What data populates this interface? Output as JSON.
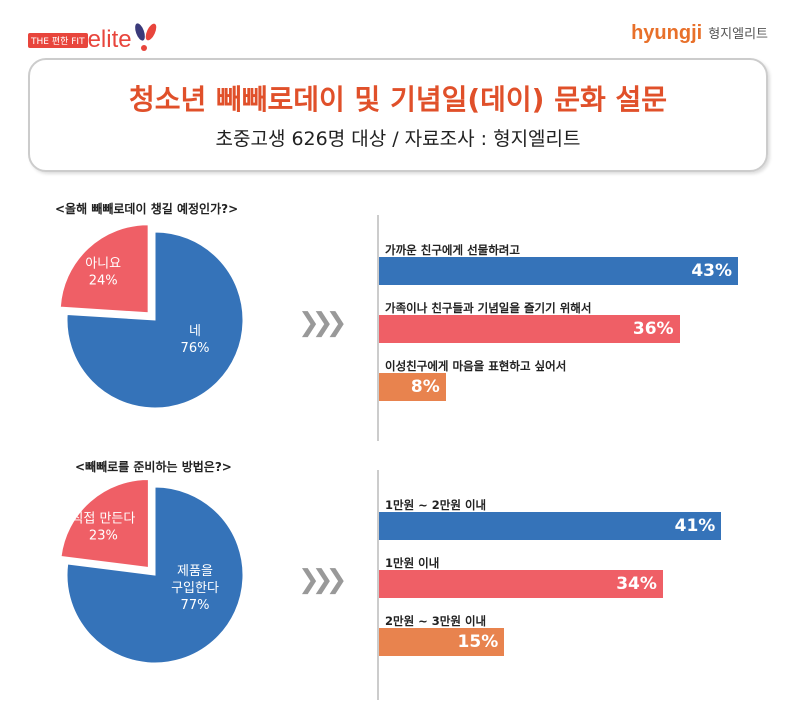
{
  "header": {
    "left_logo_tag": "THE 편한 FIT",
    "left_logo_name": "elite",
    "right_logo_en": "hyungji",
    "right_logo_ko": "형지엘리트"
  },
  "title": "청소년 빼빼로데이 및 기념일(데이) 문화 설문",
  "subtitle": "초중고생 626명 대상 / 자료조사 : 형지엘리트",
  "colors": {
    "blue": "#3573b9",
    "red": "#ef5f66",
    "orange": "#e8834e",
    "title": "#e0502a"
  },
  "chart_data": [
    {
      "type": "pie",
      "title": "<올해 빼빼로데이 챙길 예정인가?>",
      "slices": [
        {
          "label": "네",
          "value": 76,
          "text": "76%",
          "color": "#3573b9"
        },
        {
          "label": "아니요",
          "value": 24,
          "text": "24%",
          "color": "#ef5f66",
          "exploded": true
        }
      ]
    },
    {
      "type": "bar",
      "title": "",
      "categories": [
        "가까운 친구에게 선물하려고",
        "가족이나 친구들과 기념일을 즐기기 위해서",
        "이성친구에게 마음을 표현하고 싶어서"
      ],
      "values": [
        43,
        36,
        8
      ],
      "labels": [
        "43%",
        "36%",
        "8%"
      ],
      "colors": [
        "#3573b9",
        "#ef5f66",
        "#e8834e"
      ]
    },
    {
      "type": "pie",
      "title": "<빼빼로를 준비하는 방법은?>",
      "slices": [
        {
          "label": "제품을 구입한다",
          "value": 77,
          "text": "77%",
          "color": "#3573b9"
        },
        {
          "label": "직접 만든다",
          "value": 23,
          "text": "23%",
          "color": "#ef5f66",
          "exploded": true
        }
      ]
    },
    {
      "type": "bar",
      "title": "",
      "categories": [
        "1만원 ~ 2만원 이내",
        "1만원 이내",
        "2만원 ~ 3만원 이내"
      ],
      "values": [
        41,
        34,
        15
      ],
      "labels": [
        "41%",
        "34%",
        "15%"
      ],
      "colors": [
        "#3573b9",
        "#ef5f66",
        "#e8834e"
      ]
    }
  ],
  "arrow_glyph": "❯❯❯"
}
